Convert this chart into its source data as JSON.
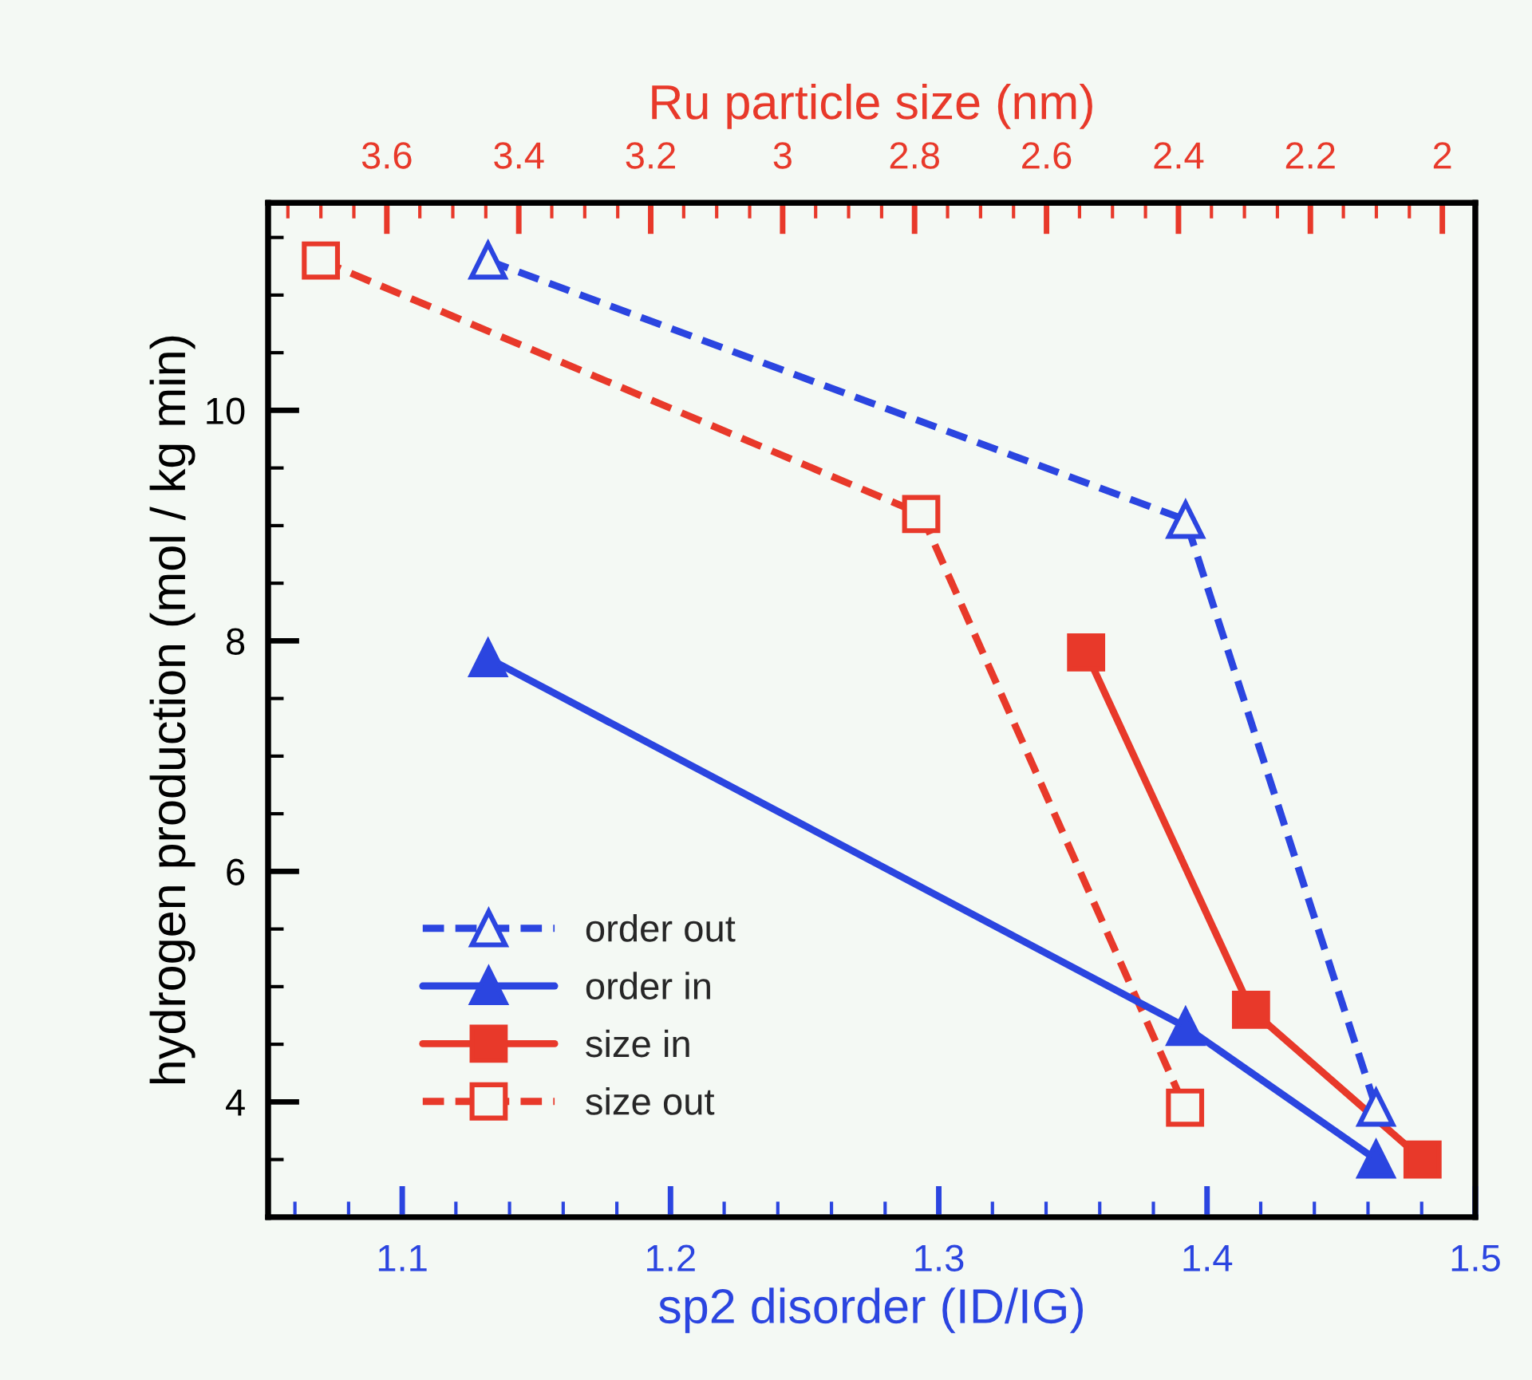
{
  "chart_data": {
    "type": "line",
    "xlabel": "sp2 disorder (ID/IG)",
    "x2label": "Ru particle size (nm)",
    "ylabel": "hydrogen production (mol / kg min)",
    "xlim": [
      1.05,
      1.5
    ],
    "xticks": [
      1.1,
      1.2,
      1.3,
      1.4,
      1.5
    ],
    "x2lim": [
      3.78,
      1.95
    ],
    "x2ticks": [
      3.6,
      3.4,
      3.2,
      3,
      2.8,
      2.6,
      2.4,
      2.2,
      2
    ],
    "ylim": [
      3.0,
      11.8
    ],
    "yticks": [
      4,
      6,
      8,
      10
    ],
    "grid": false,
    "legend": "bottom left",
    "series": [
      {
        "name": "order out",
        "color": "#2b45e0",
        "marker": "triangle",
        "line_style": "dashed",
        "x": [
          1.132,
          1.392,
          1.463
        ],
        "values": [
          11.3,
          9.05,
          3.95
        ]
      },
      {
        "name": "order in",
        "color": "#2b45e0",
        "marker": "triangle",
        "line_style": "solid",
        "x": [
          1.132,
          1.392,
          1.463
        ],
        "values": [
          7.85,
          4.65,
          3.5
        ]
      },
      {
        "name": "size in",
        "color": "#e8392a",
        "axis": "x2",
        "marker": "square",
        "line_style": "solid",
        "x": [
          2.54,
          2.29,
          2.03
        ],
        "values": [
          7.9,
          4.8,
          3.5
        ]
      },
      {
        "name": "size out",
        "color": "#e8392a",
        "axis": "x2",
        "marker": "square",
        "line_style": "dashed",
        "x": [
          3.7,
          2.79,
          2.39
        ],
        "values": [
          11.3,
          9.1,
          3.95
        ]
      }
    ]
  }
}
